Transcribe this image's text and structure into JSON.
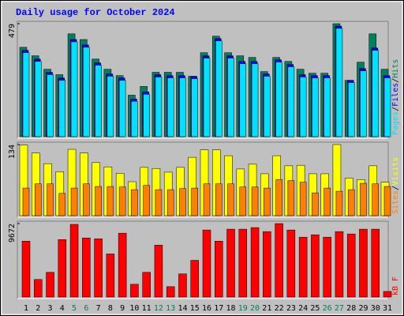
{
  "chart_data": [
    {
      "type": "bar",
      "title": "Daily usage for October 2024",
      "ylim": [
        0,
        479
      ],
      "yticks": [
        479
      ],
      "legend_separator": "/",
      "series": [
        {
          "name": "Hits",
          "color": "#00805c",
          "values": [
            379,
            343,
            286,
            263,
            436,
            412,
            329,
            286,
            259,
            176,
            213,
            273,
            273,
            273,
            256,
            356,
            426,
            356,
            343,
            336,
            276,
            336,
            319,
            286,
            269,
            269,
            479,
            239,
            316,
            436,
            286
          ]
        },
        {
          "name": "Files",
          "color": "#0000ff",
          "values": [
            366,
            329,
            273,
            249,
            412,
            389,
            313,
            266,
            249,
            160,
            190,
            263,
            259,
            259,
            256,
            343,
            416,
            343,
            319,
            319,
            266,
            326,
            306,
            263,
            259,
            259,
            469,
            239,
            289,
            376,
            259
          ]
        },
        {
          "name": "Pages",
          "color": "#00e0ff",
          "values": [
            356,
            319,
            263,
            239,
            402,
            379,
            303,
            256,
            239,
            150,
            180,
            253,
            249,
            249,
            246,
            333,
            406,
            333,
            309,
            309,
            256,
            316,
            296,
            253,
            249,
            249,
            459,
            229,
            279,
            366,
            249
          ]
        }
      ]
    },
    {
      "type": "bar",
      "ylim": [
        0,
        134
      ],
      "yticks": [
        134
      ],
      "legend_separator": "/",
      "series": [
        {
          "name": "Visits",
          "color": "#ffff00",
          "values": [
            133,
            118,
            98,
            83,
            125,
            118,
            100,
            92,
            80,
            64,
            91,
            89,
            82,
            91,
            110,
            124,
            124,
            113,
            88,
            97,
            79,
            113,
            94,
            95,
            79,
            79,
            134,
            71,
            68,
            94,
            63
          ]
        },
        {
          "name": "Sites",
          "color": "#ff8000",
          "values": [
            52,
            60,
            60,
            42,
            52,
            60,
            55,
            55,
            54,
            49,
            57,
            49,
            49,
            51,
            52,
            60,
            60,
            60,
            54,
            54,
            52,
            68,
            66,
            63,
            43,
            52,
            46,
            49,
            61,
            60,
            55
          ]
        }
      ]
    },
    {
      "type": "bar",
      "ylim": [
        0,
        9672
      ],
      "yticks": [
        9672
      ],
      "categories": [
        "1",
        "2",
        "3",
        "4",
        "5",
        "6",
        "7",
        "8",
        "9",
        "10",
        "11",
        "12",
        "13",
        "14",
        "15",
        "16",
        "17",
        "18",
        "19",
        "20",
        "21",
        "22",
        "23",
        "24",
        "25",
        "26",
        "27",
        "28",
        "29",
        "30",
        "31"
      ],
      "category_colors": [
        "#000000",
        "#000000",
        "#000000",
        "#000000",
        "#00805c",
        "#00805c",
        "#000000",
        "#000000",
        "#000000",
        "#000000",
        "#000000",
        "#00805c",
        "#00805c",
        "#000000",
        "#000000",
        "#000000",
        "#000000",
        "#000000",
        "#00805c",
        "#00805c",
        "#000000",
        "#000000",
        "#000000",
        "#000000",
        "#000000",
        "#00805c",
        "#00805c",
        "#000000",
        "#000000",
        "#000000",
        "#000000"
      ],
      "series": [
        {
          "name": "kB F",
          "color": "#ff0000",
          "values": [
            7357,
            2312,
            3258,
            7567,
            9565,
            7777,
            7672,
            5675,
            8408,
            1682,
            3258,
            6832,
            1366,
            3048,
            4835,
            8829,
            7357,
            8934,
            8934,
            9144,
            8618,
            9672,
            8829,
            7883,
            8198,
            7883,
            8618,
            8303,
            8934,
            8934,
            736
          ]
        }
      ]
    }
  ]
}
